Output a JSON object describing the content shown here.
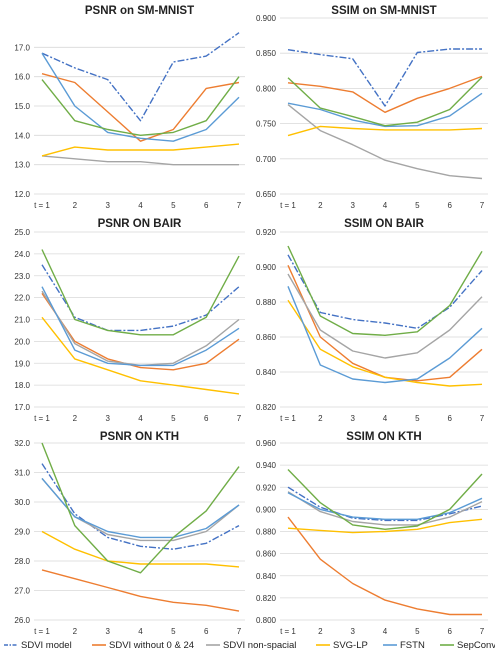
{
  "colors": {
    "SDVI model": "#4472c4",
    "SDVI without 0 & 24": "#ed7d31",
    "SDVI non-spacial": "#a5a5a5",
    "SVG-LP": "#ffc000",
    "FSTN": "#5b9bd5",
    "SepConv": "#70ad47"
  },
  "legend": [
    "SDVI model",
    "SDVI without 0 & 24",
    "SDVI non-spacial",
    "SVG-LP",
    "FSTN",
    "SepConv"
  ],
  "chart_data": [
    {
      "type": "line",
      "title": "PSNR on SM-MNIST",
      "x": [
        1,
        2,
        3,
        4,
        5,
        6,
        7
      ],
      "x_labels": [
        "t = 1",
        "2",
        "3",
        "4",
        "5",
        "6",
        "7"
      ],
      "ylim": [
        12.0,
        18.0
      ],
      "yticks": [
        "12.0",
        "13.0",
        "14.0",
        "15.0",
        "16.0",
        "17.0"
      ],
      "grid": true,
      "series": [
        {
          "name": "SDVI model",
          "values": [
            16.8,
            16.3,
            15.9,
            14.5,
            16.5,
            16.7,
            17.5
          ]
        },
        {
          "name": "SDVI without 0 & 24",
          "values": [
            16.1,
            15.8,
            14.8,
            13.8,
            14.2,
            15.6,
            15.8
          ]
        },
        {
          "name": "SDVI non-spacial",
          "values": [
            13.3,
            13.2,
            13.1,
            13.1,
            13.0,
            13.0,
            13.0
          ]
        },
        {
          "name": "SVG-LP",
          "values": [
            13.3,
            13.6,
            13.5,
            13.5,
            13.5,
            13.6,
            13.7
          ]
        },
        {
          "name": "FSTN",
          "values": [
            16.8,
            15.0,
            14.1,
            13.9,
            13.8,
            14.2,
            15.3
          ]
        },
        {
          "name": "SepConv",
          "values": [
            15.9,
            14.5,
            14.2,
            14.0,
            14.1,
            14.5,
            16.0
          ]
        }
      ]
    },
    {
      "type": "line",
      "title": "SSIM on SM-MNIST",
      "x": [
        1,
        2,
        3,
        4,
        5,
        6,
        7
      ],
      "x_labels": [
        "t = 1",
        "2",
        "3",
        "4",
        "5",
        "6",
        "7"
      ],
      "ylim": [
        0.65,
        0.9
      ],
      "yticks": [
        "0.650",
        "0.700",
        "0.750",
        "0.800",
        "0.850",
        "0.900"
      ],
      "grid": true,
      "series": [
        {
          "name": "SDVI model",
          "values": [
            0.855,
            0.848,
            0.842,
            0.775,
            0.851,
            0.856,
            0.856
          ]
        },
        {
          "name": "SDVI without 0 & 24",
          "values": [
            0.808,
            0.803,
            0.795,
            0.766,
            0.786,
            0.8,
            0.817
          ]
        },
        {
          "name": "SDVI non-spacial",
          "values": [
            0.777,
            0.74,
            0.72,
            0.698,
            0.686,
            0.676,
            0.672
          ]
        },
        {
          "name": "SVG-LP",
          "values": [
            0.733,
            0.746,
            0.743,
            0.741,
            0.741,
            0.741,
            0.743
          ]
        },
        {
          "name": "FSTN",
          "values": [
            0.779,
            0.77,
            0.755,
            0.746,
            0.747,
            0.761,
            0.793
          ]
        },
        {
          "name": "SepConv",
          "values": [
            0.815,
            0.772,
            0.76,
            0.747,
            0.752,
            0.77,
            0.816
          ]
        }
      ]
    },
    {
      "type": "line",
      "title": "PSNR ON BAIR",
      "x": [
        1,
        2,
        3,
        4,
        5,
        6,
        7
      ],
      "x_labels": [
        "t = 1",
        "2",
        "3",
        "4",
        "5",
        "6",
        "7"
      ],
      "ylim": [
        17.0,
        25.0
      ],
      "yticks": [
        "17.0",
        "18.0",
        "19.0",
        "20.0",
        "21.0",
        "22.0",
        "23.0",
        "24.0",
        "25.0"
      ],
      "grid": true,
      "series": [
        {
          "name": "SDVI model",
          "values": [
            23.5,
            21.1,
            20.5,
            20.5,
            20.7,
            21.2,
            22.5
          ]
        },
        {
          "name": "SDVI without 0 & 24",
          "values": [
            22.2,
            20.0,
            19.2,
            18.8,
            18.7,
            19.0,
            20.1
          ]
        },
        {
          "name": "SDVI non-spacial",
          "values": [
            22.3,
            19.9,
            19.1,
            18.9,
            19.0,
            19.8,
            21.0
          ]
        },
        {
          "name": "SVG-LP",
          "values": [
            21.1,
            19.2,
            18.7,
            18.2,
            18.0,
            17.8,
            17.6
          ]
        },
        {
          "name": "FSTN",
          "values": [
            22.5,
            19.6,
            19.0,
            18.9,
            18.9,
            19.6,
            20.6
          ]
        },
        {
          "name": "SepConv",
          "values": [
            24.2,
            21.0,
            20.5,
            20.3,
            20.3,
            21.1,
            23.9
          ]
        }
      ]
    },
    {
      "type": "line",
      "title": "SSIM ON BAIR",
      "x": [
        1,
        2,
        3,
        4,
        5,
        6,
        7
      ],
      "x_labels": [
        "t = 1",
        "2",
        "3",
        "4",
        "5",
        "6",
        "7"
      ],
      "ylim": [
        0.82,
        0.92
      ],
      "yticks": [
        "0.820",
        "0.840",
        "0.860",
        "0.880",
        "0.900",
        "0.920"
      ],
      "grid": true,
      "series": [
        {
          "name": "SDVI model",
          "values": [
            0.907,
            0.874,
            0.87,
            0.868,
            0.865,
            0.877,
            0.898
          ]
        },
        {
          "name": "SDVI without 0 & 24",
          "values": [
            0.901,
            0.86,
            0.845,
            0.837,
            0.835,
            0.837,
            0.853
          ]
        },
        {
          "name": "SDVI non-spacial",
          "values": [
            0.896,
            0.864,
            0.852,
            0.848,
            0.851,
            0.864,
            0.883
          ]
        },
        {
          "name": "SVG-LP",
          "values": [
            0.881,
            0.853,
            0.843,
            0.837,
            0.834,
            0.832,
            0.833
          ]
        },
        {
          "name": "FSTN",
          "values": [
            0.889,
            0.844,
            0.836,
            0.834,
            0.836,
            0.848,
            0.865
          ]
        },
        {
          "name": "SepConv",
          "values": [
            0.912,
            0.872,
            0.862,
            0.861,
            0.863,
            0.878,
            0.909
          ]
        }
      ]
    },
    {
      "type": "line",
      "title": "PSNR ON KTH",
      "x": [
        1,
        2,
        3,
        4,
        5,
        6,
        7
      ],
      "x_labels": [
        "t = 1",
        "2",
        "3",
        "4",
        "5",
        "6",
        "7"
      ],
      "ylim": [
        26.0,
        32.0
      ],
      "yticks": [
        "26.0",
        "27.0",
        "28.0",
        "29.0",
        "30.0",
        "31.0",
        "32.0"
      ],
      "grid": true,
      "series": [
        {
          "name": "SDVI model",
          "values": [
            31.3,
            29.6,
            28.8,
            28.5,
            28.4,
            28.6,
            29.2
          ]
        },
        {
          "name": "SDVI without 0 & 24",
          "values": [
            27.7,
            27.4,
            27.1,
            26.8,
            26.6,
            26.5,
            26.3
          ]
        },
        {
          "name": "SDVI non-spacial",
          "values": [
            30.8,
            29.5,
            28.9,
            28.7,
            28.7,
            29.0,
            29.9
          ]
        },
        {
          "name": "SVG-LP",
          "values": [
            29.0,
            28.4,
            28.0,
            27.9,
            27.9,
            27.9,
            27.8
          ]
        },
        {
          "name": "FSTN",
          "values": [
            30.8,
            29.5,
            29.0,
            28.8,
            28.8,
            29.1,
            29.9
          ]
        },
        {
          "name": "SepConv",
          "values": [
            32.0,
            29.2,
            28.0,
            27.6,
            28.8,
            29.7,
            31.2
          ]
        }
      ]
    },
    {
      "type": "line",
      "title": "SSIM ON KTH",
      "x": [
        1,
        2,
        3,
        4,
        5,
        6,
        7
      ],
      "x_labels": [
        "t = 1",
        "2",
        "3",
        "4",
        "5",
        "6",
        "7"
      ],
      "ylim": [
        0.8,
        0.96
      ],
      "yticks": [
        "0.800",
        "0.820",
        "0.840",
        "0.860",
        "0.880",
        "0.900",
        "0.920",
        "0.940",
        "0.960"
      ],
      "grid": true,
      "series": [
        {
          "name": "SDVI model",
          "values": [
            0.92,
            0.902,
            0.892,
            0.89,
            0.89,
            0.896,
            0.903
          ]
        },
        {
          "name": "SDVI without 0 & 24",
          "values": [
            0.893,
            0.855,
            0.833,
            0.818,
            0.81,
            0.805,
            0.805
          ]
        },
        {
          "name": "SDVI non-spacial",
          "values": [
            0.916,
            0.898,
            0.889,
            0.886,
            0.886,
            0.893,
            0.907
          ]
        },
        {
          "name": "SVG-LP",
          "values": [
            0.883,
            0.881,
            0.879,
            0.88,
            0.882,
            0.888,
            0.891
          ]
        },
        {
          "name": "FSTN",
          "values": [
            0.915,
            0.9,
            0.893,
            0.891,
            0.891,
            0.897,
            0.91
          ]
        },
        {
          "name": "SepConv",
          "values": [
            0.936,
            0.906,
            0.886,
            0.882,
            0.885,
            0.9,
            0.932
          ]
        }
      ]
    }
  ]
}
